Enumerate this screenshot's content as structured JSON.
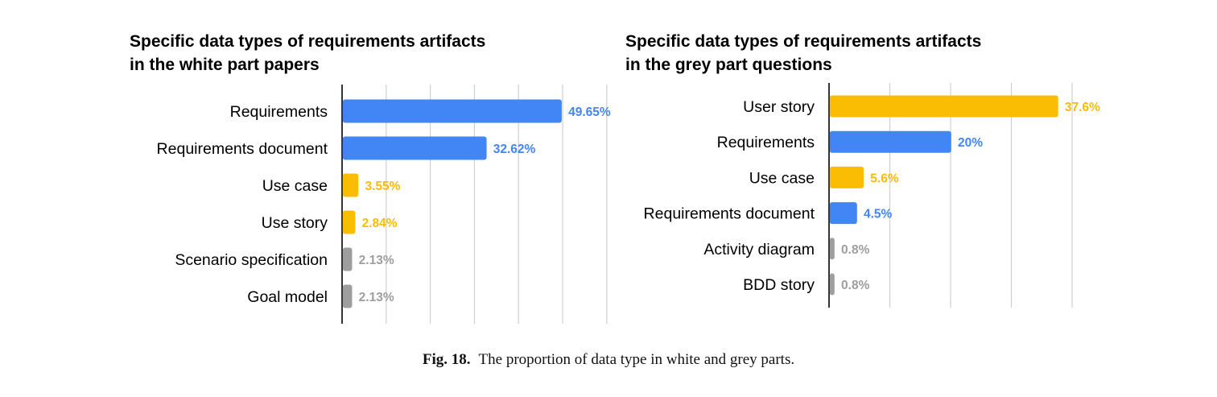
{
  "colors": {
    "blue": "#4285f4",
    "yellow": "#fbbc04",
    "grey": "#9e9e9e",
    "grid": "#cfcfcf",
    "axis": "#000000"
  },
  "caption": {
    "label": "Fig. 18.",
    "text": "The proportion of data type in white and grey parts."
  },
  "chart_data": [
    {
      "type": "bar",
      "orientation": "horizontal",
      "title": [
        "Specific data types of requirements artifacts",
        "in the white part papers"
      ],
      "xlabel": "",
      "ylabel": "",
      "xlim": [
        0,
        60
      ],
      "grid": true,
      "legend": "none",
      "categories": [
        "Requirements",
        "Requirements document",
        "Use case",
        "Use story",
        "Scenario specification",
        "Goal model"
      ],
      "values": [
        49.65,
        32.62,
        3.55,
        2.84,
        2.13,
        2.13
      ],
      "labels": [
        "49.65%",
        "32.62%",
        "3.55%",
        "2.84%",
        "2.13%",
        "2.13%"
      ],
      "colors": [
        "blue",
        "blue",
        "yellow",
        "yellow",
        "grey",
        "grey"
      ]
    },
    {
      "type": "bar",
      "orientation": "horizontal",
      "title": [
        "Specific data types of requirements artifacts",
        "in the grey part questions"
      ],
      "xlabel": "",
      "ylabel": "",
      "xlim": [
        0,
        40
      ],
      "grid": true,
      "legend": "none",
      "categories": [
        "User story",
        "Requirements",
        "Use case",
        "Requirements document",
        "Activity diagram",
        "BDD story"
      ],
      "values": [
        37.6,
        20,
        5.6,
        4.5,
        0.8,
        0.8
      ],
      "labels": [
        "37.6%",
        "20%",
        "5.6%",
        "4.5%",
        "0.8%",
        "0.8%"
      ],
      "colors": [
        "yellow",
        "blue",
        "yellow",
        "blue",
        "grey",
        "grey"
      ]
    }
  ]
}
